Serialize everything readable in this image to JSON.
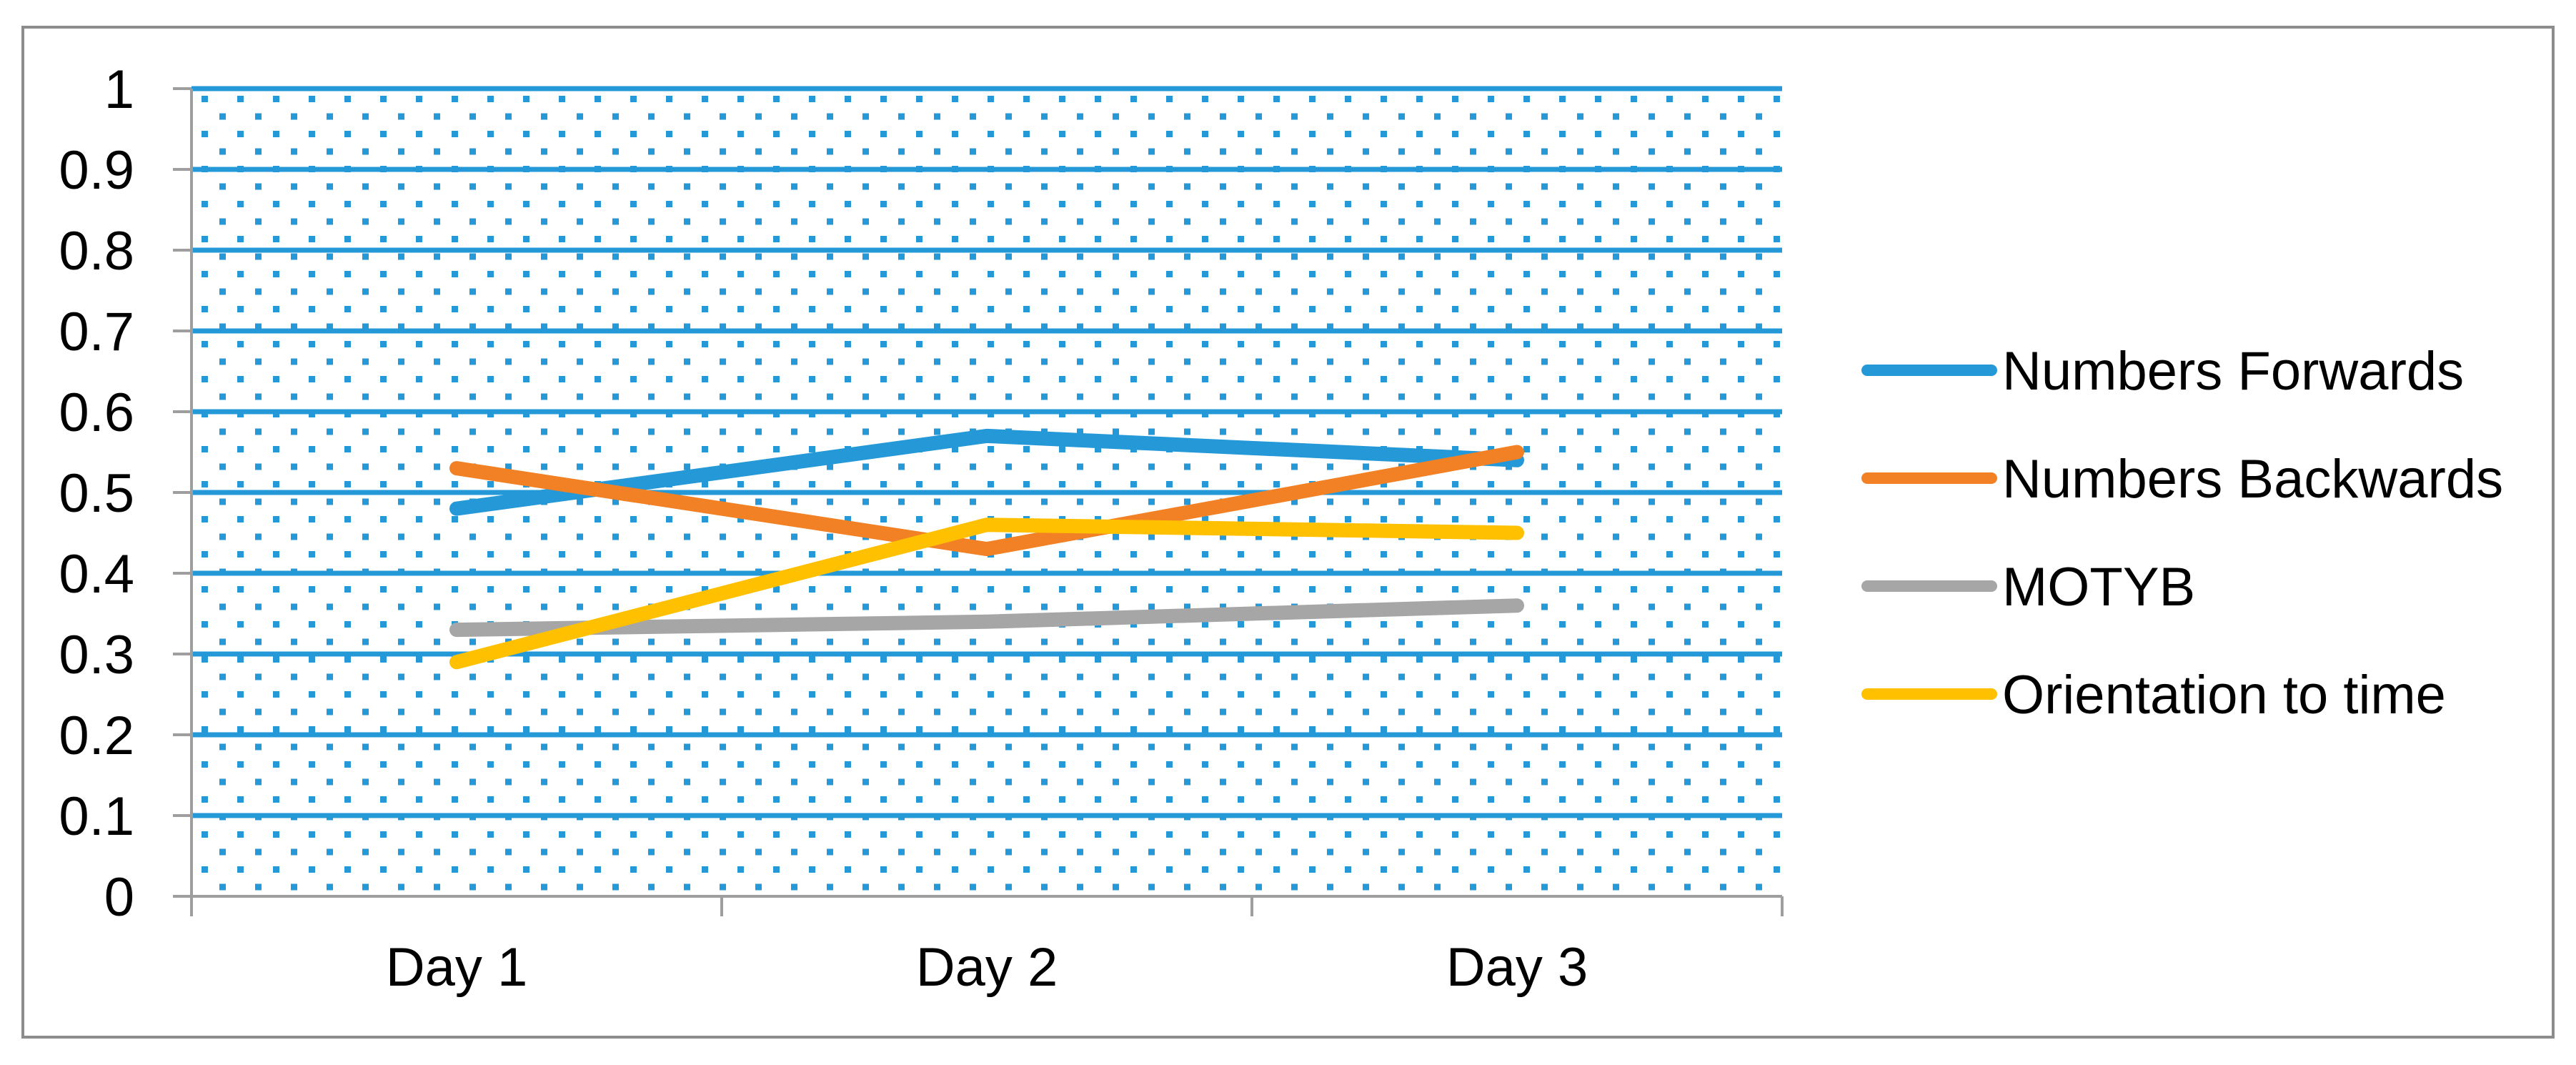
{
  "figure": {
    "kind": "line-chart-figure",
    "background": "#FFFFFF",
    "border_color": "#8C8C8C"
  },
  "chart_data": {
    "type": "line",
    "title": "",
    "xlabel": "",
    "ylabel": "",
    "categories": [
      "Day 1",
      "Day 2",
      "Day 3"
    ],
    "series": [
      {
        "name": "Numbers Forwards",
        "color": "#2599D8",
        "values": [
          0.48,
          0.57,
          0.54
        ]
      },
      {
        "name": "Numbers Backwards",
        "color": "#F28024",
        "values": [
          0.53,
          0.43,
          0.55
        ]
      },
      {
        "name": "MOTYB",
        "color": "#A6A6A6",
        "values": [
          0.33,
          0.34,
          0.36
        ]
      },
      {
        "name": "Orientation to time",
        "color": "#FFC000",
        "values": [
          0.29,
          0.46,
          0.45
        ]
      }
    ],
    "ylim": [
      0,
      1
    ],
    "yticks": {
      "values": [
        1,
        0.9,
        0.8,
        0.7,
        0.6,
        0.5,
        0.4,
        0.3,
        0.2,
        0.1,
        0
      ],
      "labels": [
        "1",
        "0.9",
        "0.8",
        "0.7",
        "0.6",
        "0.5",
        "0.4",
        "0.3",
        "0.2",
        "0.1",
        "0"
      ]
    },
    "grid": "horizontal",
    "legend_position": "right",
    "plot_area_style": {
      "fill": "dotted-pattern",
      "dot_color": "#2599D8",
      "gridline_color": "#2599D8"
    },
    "axis_color": "#9E9E9E",
    "text_color": "#000000"
  }
}
